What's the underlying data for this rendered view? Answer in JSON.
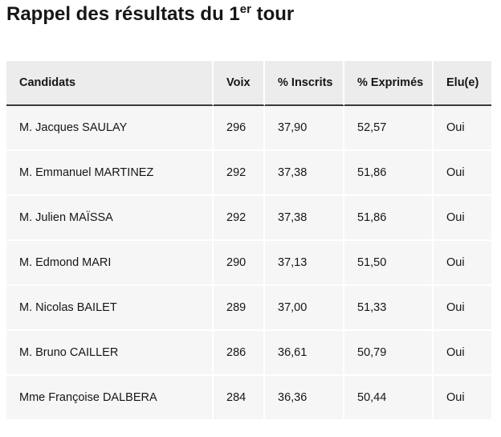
{
  "page": {
    "title_main": "Rappel des résultats du 1",
    "title_sup": "er",
    "title_end": " tour"
  },
  "table": {
    "headers": [
      "Candidats",
      "Voix",
      "% Inscrits",
      "% Exprimés",
      "Elu(e)"
    ],
    "rows": [
      [
        "M. Jacques SAULAY",
        "296",
        "37,90",
        "52,57",
        "Oui"
      ],
      [
        "M. Emmanuel MARTINEZ",
        "292",
        "37,38",
        "51,86",
        "Oui"
      ],
      [
        "M. Julien MAÏSSA",
        "292",
        "37,38",
        "51,86",
        "Oui"
      ],
      [
        "M. Edmond MARI",
        "290",
        "37,13",
        "51,50",
        "Oui"
      ],
      [
        "M. Nicolas BAILET",
        "289",
        "37,00",
        "51,33",
        "Oui"
      ],
      [
        "M. Bruno CAILLER",
        "286",
        "36,61",
        "50,79",
        "Oui"
      ],
      [
        "Mme Françoise DALBERA",
        "284",
        "36,36",
        "50,44",
        "Oui"
      ]
    ]
  }
}
